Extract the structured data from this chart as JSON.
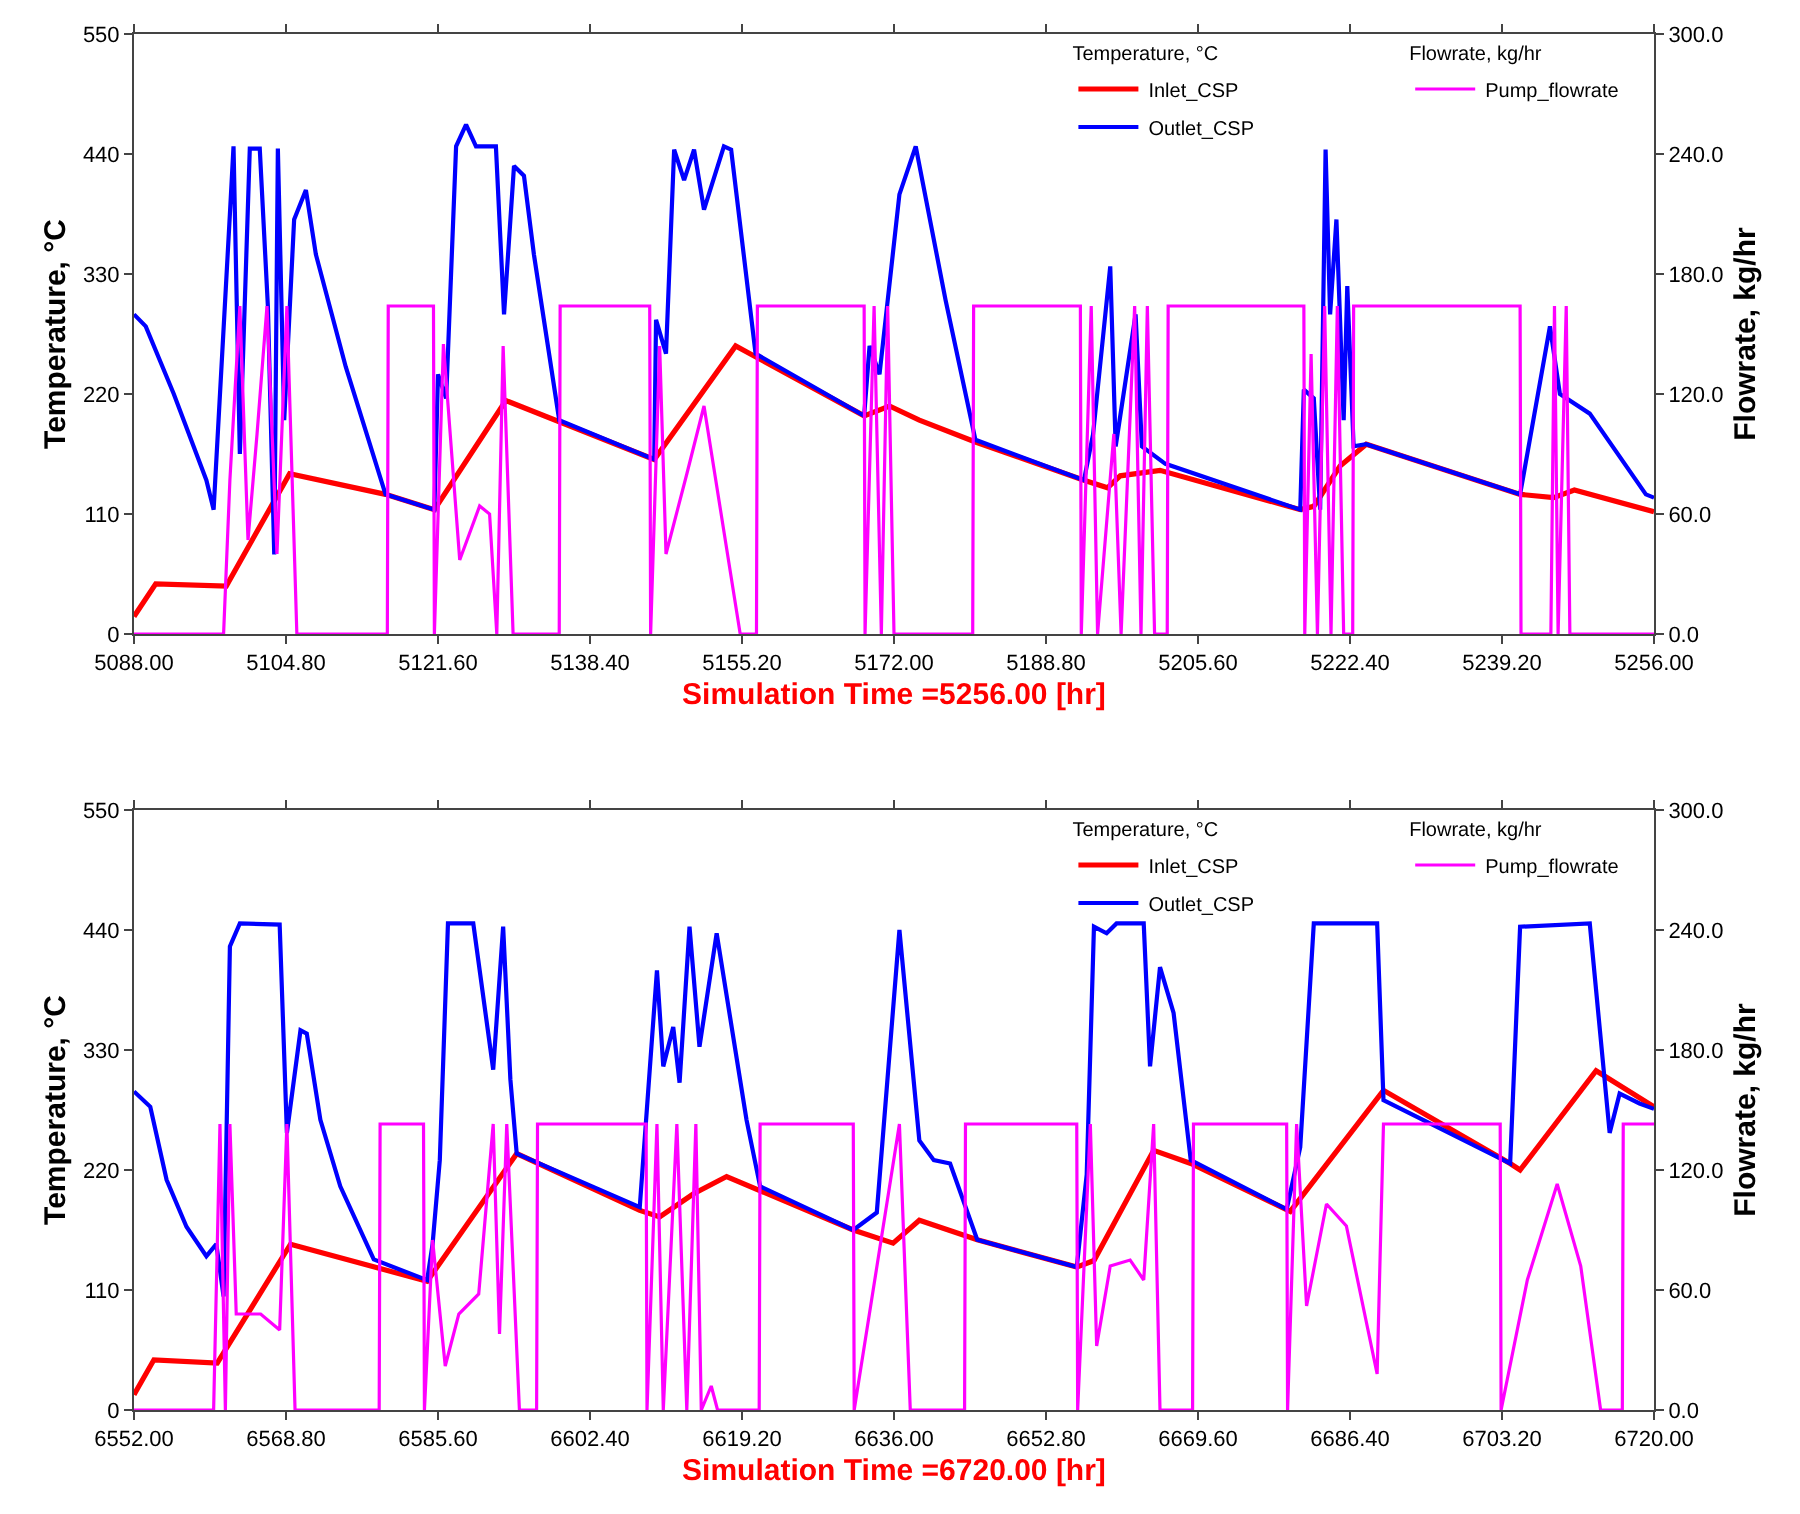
{
  "chart_data": [
    {
      "type": "line",
      "xlabel": "Simulation Time =5256.00 [hr]",
      "ylabel": "Temperature, °C",
      "y2label": "Flowrate, kg/hr",
      "legend_title": [
        "Temperature, °C",
        "Flowrate, kg/hr"
      ],
      "legend": "top right",
      "marker": "none",
      "line_style": "solid",
      "xlim": [
        5088,
        5256
      ],
      "xticks": [
        {
          "value": 5088,
          "label": "5088.00"
        },
        {
          "value": 5104.8,
          "label": "5104.80"
        },
        {
          "value": 5121.6,
          "label": "5121.60"
        },
        {
          "value": 5138.4,
          "label": "5138.40"
        },
        {
          "value": 5155.2,
          "label": "5155.20"
        },
        {
          "value": 5172,
          "label": "5172.00"
        },
        {
          "value": 5188.8,
          "label": "5188.80"
        },
        {
          "value": 5205.6,
          "label": "5205.60"
        },
        {
          "value": 5222.4,
          "label": "5222.40"
        },
        {
          "value": 5239.2,
          "label": "5239.20"
        },
        {
          "value": 5256,
          "label": "5256.00"
        }
      ],
      "ylim": [
        0,
        550
      ],
      "yticks": [
        0,
        110,
        220,
        330,
        440,
        550
      ],
      "y2lim": [
        0,
        300
      ],
      "y2ticks": [
        {
          "value": 0,
          "label": "0.0"
        },
        {
          "value": 60,
          "label": "60.0"
        },
        {
          "value": 120,
          "label": "120.0"
        },
        {
          "value": 180,
          "label": "180.0"
        },
        {
          "value": 240,
          "label": "240.0"
        },
        {
          "value": 300,
          "label": "300.0"
        }
      ],
      "series": [
        {
          "name": "Inlet_CSP",
          "color": "#ff0000",
          "x": [
            5088,
            5090.4,
            5098.2,
            5105.2,
            5115.8,
            5121.2,
            5129.1,
            5145.5,
            5154.5,
            5168.7,
            5171.5,
            5174.8,
            5181,
            5193,
            5195.6,
            5197,
            5201.4,
            5216.9,
            5218.4,
            5221.3,
            5224.2,
            5241.2,
            5244.9,
            5247.2,
            5256
          ],
          "values": [
            16,
            46,
            44,
            147,
            128,
            114,
            214,
            160,
            264,
            200,
            209,
            196,
            176,
            141,
            134,
            145,
            150,
            114,
            117,
            154,
            174,
            128,
            125,
            132,
            112
          ]
        },
        {
          "name": "Outlet_CSP",
          "color": "#0000ff",
          "x": [
            5088,
            5089.3,
            5092.4,
            5096,
            5096.8,
            5098.6,
            5099,
            5099.7,
            5100.8,
            5101.9,
            5102.8,
            5103.5,
            5103.9,
            5104.6,
            5105.7,
            5107,
            5108.1,
            5111.4,
            5115.8,
            5121.2,
            5121.6,
            5122.5,
            5123.6,
            5124.7,
            5125.8,
            5128,
            5128.9,
            5130,
            5131.1,
            5132.2,
            5135,
            5145.5,
            5145.7,
            5146.8,
            5147.7,
            5148.8,
            5149.9,
            5151,
            5153.2,
            5154,
            5156.7,
            5168.7,
            5169.3,
            5170.4,
            5172.6,
            5174.4,
            5177.7,
            5181,
            5193,
            5194,
            5195.9,
            5196.5,
            5198.7,
            5199.4,
            5202,
            5216.9,
            5217.3,
            5218.4,
            5219.1,
            5219.7,
            5220.2,
            5220.9,
            5221.7,
            5222.1,
            5222.8,
            5224.2,
            5241.2,
            5244.5,
            5245.6,
            5248.9,
            5255.1,
            5256
          ],
          "values": [
            293,
            282,
            220,
            141,
            114,
            385,
            447,
            165,
            445,
            445,
            300,
            73,
            445,
            196,
            380,
            407,
            348,
            245,
            128,
            114,
            238,
            216,
            447,
            467,
            447,
            447,
            293,
            429,
            420,
            348,
            196,
            160,
            288,
            257,
            444,
            416,
            444,
            389,
            447,
            444,
            257,
            200,
            264,
            238,
            403,
            447,
            306,
            178,
            141,
            183,
            337,
            172,
            293,
            172,
            156,
            114,
            224,
            216,
            114,
            444,
            293,
            380,
            196,
            319,
            172,
            174,
            128,
            282,
            220,
            202,
            128,
            125
          ]
        },
        {
          "name": "Pump_flowrate",
          "color": "#ff00ff",
          "axis": "y2",
          "x": [
            5088,
            5097.9,
            5098.6,
            5099.7,
            5100.6,
            5101.6,
            5102.7,
            5103.8,
            5104.9,
            5106,
            5116,
            5116.1,
            5121.1,
            5121.2,
            5122.2,
            5124,
            5126.2,
            5127.3,
            5128.1,
            5128.8,
            5129.9,
            5135,
            5135.1,
            5145,
            5145.1,
            5146.1,
            5146.8,
            5149.1,
            5151,
            5155,
            5156.8,
            5156.9,
            5168.7,
            5168.8,
            5169.8,
            5170.6,
            5171.3,
            5172,
            5180.7,
            5180.8,
            5192.6,
            5192.7,
            5193.8,
            5194.5,
            5196.3,
            5197.1,
            5198.6,
            5199.3,
            5200,
            5200.8,
            5202.2,
            5202.3,
            5217.3,
            5217.4,
            5218.1,
            5218.8,
            5219.6,
            5220.3,
            5221,
            5221.7,
            5222.7,
            5222.8,
            5241.2,
            5241.3,
            5244.6,
            5245,
            5245.4,
            5246.3,
            5246.7,
            5256
          ],
          "values": [
            0,
            0,
            77,
            164,
            47,
            100,
            164,
            40,
            164,
            0,
            0,
            164,
            164,
            0,
            145,
            37,
            64,
            60,
            0,
            144,
            0,
            0,
            164,
            164,
            0,
            144,
            40,
            80,
            114,
            0,
            0,
            164,
            164,
            0,
            164,
            0,
            164,
            0,
            0,
            164,
            164,
            0,
            164,
            0,
            100,
            0,
            164,
            0,
            164,
            0,
            0,
            164,
            164,
            0,
            140,
            0,
            164,
            0,
            164,
            0,
            0,
            164,
            164,
            0,
            0,
            164,
            0,
            164,
            0,
            0
          ]
        }
      ]
    },
    {
      "type": "line",
      "xlabel": "Simulation Time =6720.00 [hr]",
      "ylabel": "Temperature, °C",
      "y2label": "Flowrate, kg/hr",
      "legend_title": [
        "Temperature, °C",
        "Flowrate, kg/hr"
      ],
      "legend": "top right",
      "marker": "none",
      "line_style": "solid",
      "xlim": [
        6552,
        6720
      ],
      "xticks": [
        {
          "value": 6552,
          "label": "6552.00"
        },
        {
          "value": 6568.8,
          "label": "6568.80"
        },
        {
          "value": 6585.6,
          "label": "6585.60"
        },
        {
          "value": 6602.4,
          "label": "6602.40"
        },
        {
          "value": 6619.2,
          "label": "6619.20"
        },
        {
          "value": 6636,
          "label": "6636.00"
        },
        {
          "value": 6652.8,
          "label": "6652.80"
        },
        {
          "value": 6669.6,
          "label": "6669.60"
        },
        {
          "value": 6686.4,
          "label": "6686.40"
        },
        {
          "value": 6703.2,
          "label": "6703.20"
        },
        {
          "value": 6720,
          "label": "6720.00"
        }
      ],
      "ylim": [
        0,
        550
      ],
      "yticks": [
        0,
        110,
        220,
        330,
        440,
        550
      ],
      "y2lim": [
        0,
        300
      ],
      "y2ticks": [
        {
          "value": 0,
          "label": "0.0"
        },
        {
          "value": 60,
          "label": "60.0"
        },
        {
          "value": 120,
          "label": "120.0"
        },
        {
          "value": 180,
          "label": "180.0"
        },
        {
          "value": 240,
          "label": "240.0"
        },
        {
          "value": 300,
          "label": "300.0"
        }
      ],
      "series": [
        {
          "name": "Inlet_CSP",
          "color": "#ff0000",
          "x": [
            6552,
            6554.2,
            6561.2,
            6569.3,
            6584.4,
            6594.3,
            6607.9,
            6610.1,
            6613.8,
            6617.5,
            6631.5,
            6635.9,
            6638.8,
            6645.2,
            6656.2,
            6658.1,
            6664.7,
            6668.8,
            6679.8,
            6690.1,
            6704.1,
            6705.2,
            6713.6,
            6720
          ],
          "values": [
            14,
            46,
            43,
            152,
            118,
            235,
            183,
            177,
            198,
            214,
            165,
            153,
            174,
            156,
            131,
            137,
            238,
            226,
            182,
            293,
            226,
            220,
            311,
            278
          ]
        },
        {
          "name": "Outlet_CSP",
          "color": "#0000ff",
          "x": [
            6552,
            6553.8,
            6555.6,
            6557.8,
            6560,
            6561.1,
            6561.9,
            6562.6,
            6563.7,
            6568.1,
            6568.9,
            6570.4,
            6571.1,
            6572.6,
            6574.8,
            6578.5,
            6584.4,
            6585,
            6585.8,
            6586.7,
            6589.5,
            6591.7,
            6592.8,
            6593.6,
            6594.3,
            6607.9,
            6609.8,
            6610.5,
            6611.6,
            6612.3,
            6613.4,
            6614.5,
            6616.4,
            6619.7,
            6621.2,
            6631.5,
            6634.1,
            6636.6,
            6638.8,
            6640.4,
            6642.2,
            6645.2,
            6656.2,
            6657.3,
            6658.1,
            6659.5,
            6660.6,
            6663.6,
            6664.3,
            6665.4,
            6666.9,
            6668.8,
            6679.4,
            6680.9,
            6682.4,
            6689.4,
            6690.1,
            6704.1,
            6705.2,
            6712.9,
            6715.1,
            6716.2,
            6718.4,
            6720
          ],
          "values": [
            292,
            278,
            211,
            168,
            141,
            152,
            104,
            425,
            446,
            445,
            254,
            348,
            345,
            266,
            205,
            138,
            119,
            152,
            229,
            446,
            446,
            312,
            443,
            303,
            235,
            186,
            403,
            315,
            351,
            300,
            443,
            333,
            437,
            266,
            205,
            165,
            181,
            440,
            247,
            229,
            226,
            156,
            131,
            216,
            443,
            437,
            446,
            446,
            315,
            406,
            364,
            229,
            184,
            241,
            446,
            446,
            284,
            226,
            443,
            446,
            254,
            290,
            281,
            276
          ]
        },
        {
          "name": "Pump_flowrate",
          "color": "#ff00ff",
          "axis": "y2",
          "x": [
            6552,
            6560.8,
            6561.5,
            6562.1,
            6562.6,
            6563.3,
            6566,
            6568.1,
            6568.9,
            6569.8,
            6579.1,
            6579.2,
            6584,
            6584.1,
            6585,
            6586.4,
            6587.9,
            6590.1,
            6591.7,
            6592.4,
            6593.2,
            6594.6,
            6596.5,
            6596.6,
            6608.6,
            6608.7,
            6609.8,
            6610.5,
            6612,
            6613.1,
            6614.1,
            6614.7,
            6615.8,
            6616.5,
            6621.1,
            6621.2,
            6631.5,
            6631.6,
            6636.6,
            6637.8,
            6643.8,
            6643.9,
            6656.2,
            6656.3,
            6657.7,
            6658.4,
            6659.9,
            6662.1,
            6663.6,
            6664.7,
            6665.4,
            6669,
            6669.1,
            6679.4,
            6679.5,
            6680.5,
            6681.6,
            6683.8,
            6686,
            6689.4,
            6690.1,
            6703,
            6703.1,
            6706,
            6709.3,
            6711.9,
            6714.1,
            6716.5,
            6716.6,
            6720
          ],
          "values": [
            0,
            0,
            143,
            0,
            143,
            48,
            48,
            40,
            143,
            0,
            0,
            143,
            143,
            0,
            85,
            22,
            48,
            58,
            143,
            38,
            143,
            0,
            0,
            143,
            143,
            0,
            143,
            0,
            143,
            0,
            143,
            0,
            12,
            0,
            0,
            143,
            143,
            0,
            143,
            0,
            0,
            143,
            143,
            0,
            143,
            32,
            72,
            75,
            65,
            143,
            0,
            0,
            143,
            143,
            0,
            143,
            52,
            103,
            92,
            18,
            143,
            143,
            0,
            65,
            113,
            72,
            0,
            0,
            143,
            143
          ]
        }
      ]
    }
  ]
}
